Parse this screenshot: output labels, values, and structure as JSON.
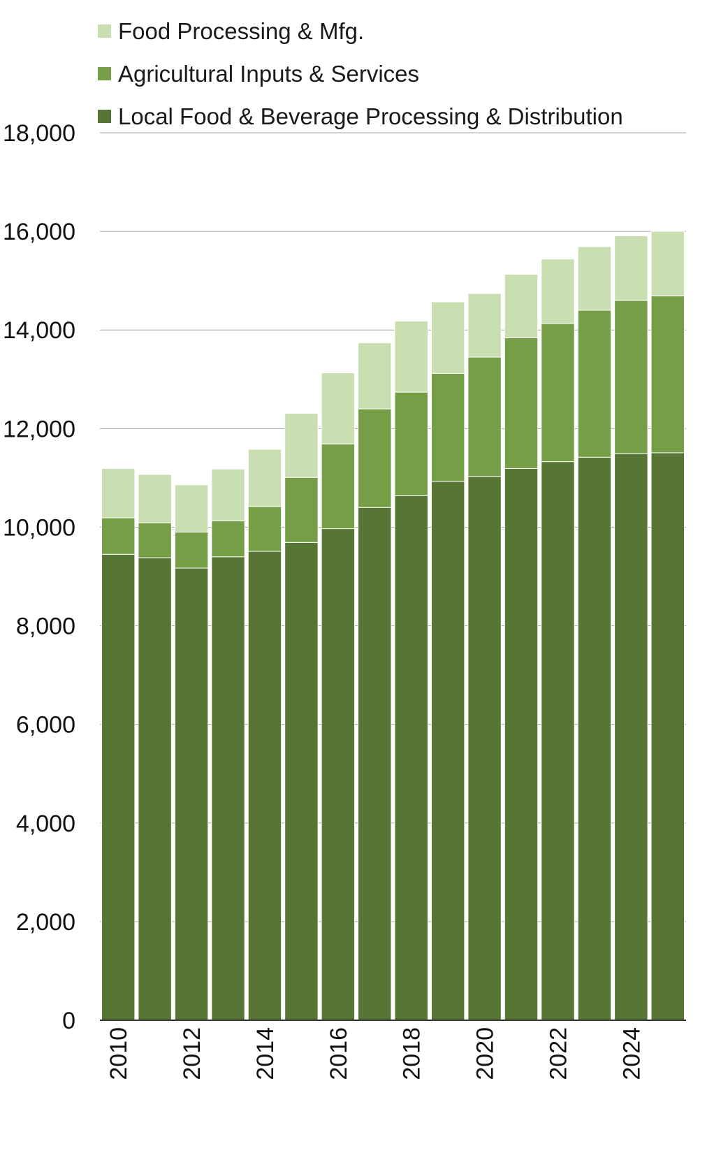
{
  "chart_data": {
    "type": "bar",
    "stacked": true,
    "title": "",
    "xlabel": "",
    "ylabel": "",
    "ylim": [
      0,
      18000
    ],
    "yticks": [
      0,
      2000,
      4000,
      6000,
      8000,
      10000,
      12000,
      14000,
      16000,
      18000
    ],
    "ytick_labels": [
      "0",
      "2,000",
      "4,000",
      "6,000",
      "8,000",
      "10,000",
      "12,000",
      "14,000",
      "16,000",
      "18,000"
    ],
    "grid": true,
    "legend_position": "top-left",
    "categories": [
      "2010",
      "2011",
      "2012",
      "2013",
      "2014",
      "2015",
      "2016",
      "2017",
      "2018",
      "2019",
      "2020",
      "2021",
      "2022",
      "2023",
      "2024",
      "2025"
    ],
    "xtick_labels": [
      "2010",
      "",
      "2012",
      "",
      "2014",
      "",
      "2016",
      "",
      "2018",
      "",
      "2020",
      "",
      "2022",
      "",
      "2024",
      ""
    ],
    "series": [
      {
        "name": "Local Food & Beverage Processing & Distribution",
        "color": "#577535",
        "values": [
          9450,
          9380,
          9170,
          9400,
          9510,
          9690,
          9970,
          10400,
          10640,
          10930,
          11030,
          11190,
          11330,
          11420,
          11490,
          11510
        ]
      },
      {
        "name": "Agricultural Inputs & Services",
        "color": "#769e47",
        "values": [
          740,
          710,
          730,
          730,
          910,
          1320,
          1720,
          2000,
          2100,
          2190,
          2420,
          2650,
          2800,
          2980,
          3110,
          3180
        ]
      },
      {
        "name": "Food Processing & Mfg.",
        "color": "#c9dfb2",
        "values": [
          1000,
          980,
          960,
          1050,
          1160,
          1300,
          1440,
          1340,
          1440,
          1450,
          1290,
          1290,
          1310,
          1290,
          1310,
          1310
        ]
      }
    ]
  }
}
